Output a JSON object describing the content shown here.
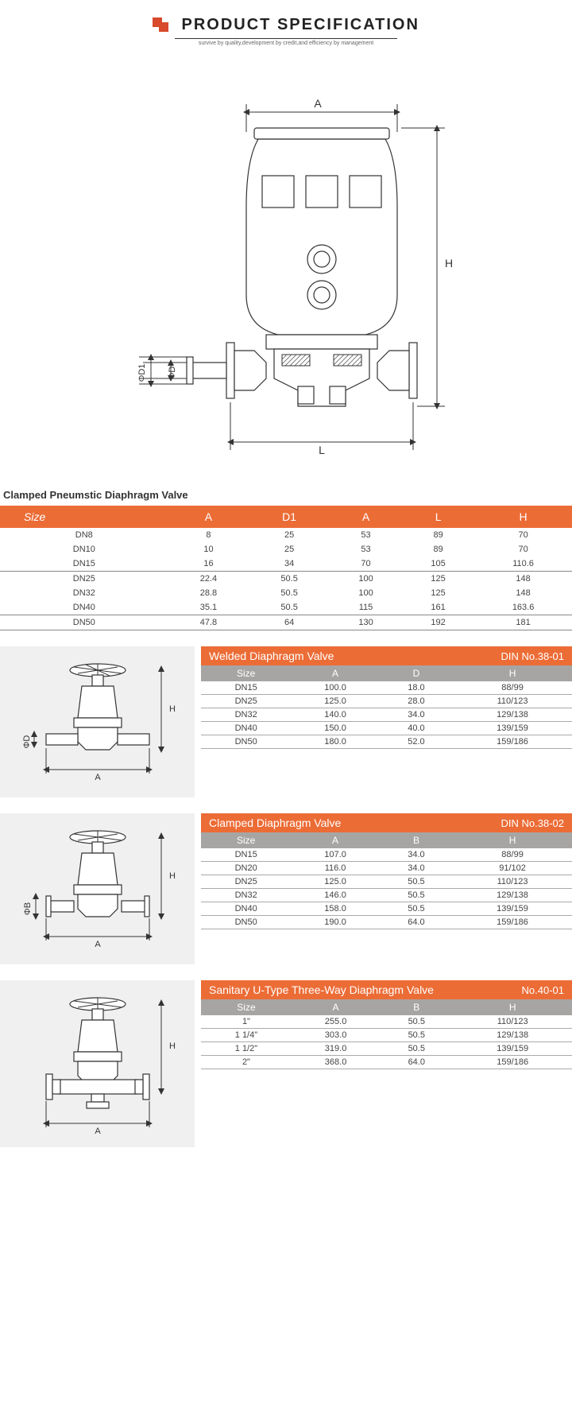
{
  "header": {
    "title": "PRODUCT  SPECIFICATION",
    "subtitle": "survive by quality,development by credit,and efficiency by management"
  },
  "main_diagram": {
    "labels": {
      "A": "A",
      "H": "H",
      "L": "L",
      "phiD": "ΦD",
      "phiD1": "ΦD1"
    }
  },
  "table1": {
    "title": "Clamped Pneumstic Diaphragm Valve",
    "columns": [
      "Size",
      "A",
      "D1",
      "A",
      "L",
      "H"
    ],
    "rows": [
      [
        "DN8",
        "8",
        "25",
        "53",
        "89",
        "70"
      ],
      [
        "DN10",
        "10",
        "25",
        "53",
        "89",
        "70"
      ],
      [
        "DN15",
        "16",
        "34",
        "70",
        "105",
        "110.6"
      ],
      [
        "DN25",
        "22.4",
        "50.5",
        "100",
        "125",
        "148"
      ],
      [
        "DN32",
        "28.8",
        "50.5",
        "100",
        "125",
        "148"
      ],
      [
        "DN40",
        "35.1",
        "50.5",
        "115",
        "161",
        "163.6"
      ],
      [
        "DN50",
        "47.8",
        "64",
        "130",
        "192",
        "181"
      ]
    ],
    "group_breaks": [
      2,
      5,
      6
    ]
  },
  "block2": {
    "title": "Welded Diaphragm Valve",
    "title_right": "DIN   No.38-01",
    "columns": [
      "Size",
      "A",
      "D",
      "H"
    ],
    "rows": [
      [
        "DN15",
        "100.0",
        "18.0",
        "88/99"
      ],
      [
        "DN25",
        "125.0",
        "28.0",
        "110/123"
      ],
      [
        "DN32",
        "140.0",
        "34.0",
        "129/138"
      ],
      [
        "DN40",
        "150.0",
        "40.0",
        "139/159"
      ],
      [
        "DN50",
        "180.0",
        "52.0",
        "159/186"
      ]
    ],
    "diagram_labels": {
      "A": "A",
      "H": "H",
      "phiD": "ΦD"
    }
  },
  "block3": {
    "title": "Clamped Diaphragm Valve",
    "title_right": "DIN   No.38-02",
    "columns": [
      "Size",
      "A",
      "B",
      "H"
    ],
    "rows": [
      [
        "DN15",
        "107.0",
        "34.0",
        "88/99"
      ],
      [
        "DN20",
        "116.0",
        "34.0",
        "91/102"
      ],
      [
        "DN25",
        "125.0",
        "50.5",
        "110/123"
      ],
      [
        "DN32",
        "146.0",
        "50.5",
        "129/138"
      ],
      [
        "DN40",
        "158.0",
        "50.5",
        "139/159"
      ],
      [
        "DN50",
        "190.0",
        "64.0",
        "159/186"
      ]
    ],
    "diagram_labels": {
      "A": "A",
      "H": "H",
      "phiB": "ΦB"
    }
  },
  "block4": {
    "title": "Sanitary U-Type Three-Way Diaphragm Valve",
    "title_right": "No.40-01",
    "columns": [
      "Size",
      "A",
      "B",
      "H"
    ],
    "rows": [
      [
        "1\"",
        "255.0",
        "50.5",
        "110/123"
      ],
      [
        "1 1/4\"",
        "303.0",
        "50.5",
        "129/138"
      ],
      [
        "1 1/2\"",
        "319.0",
        "50.5",
        "139/159"
      ],
      [
        "2\"",
        "368.0",
        "64.0",
        "159/186"
      ]
    ],
    "diagram_labels": {
      "A": "A",
      "H": "H"
    }
  },
  "colors": {
    "orange": "#ec6c36",
    "gray_header": "#a7a5a3",
    "diagram_bg": "#f0f0f0",
    "text": "#333333"
  }
}
